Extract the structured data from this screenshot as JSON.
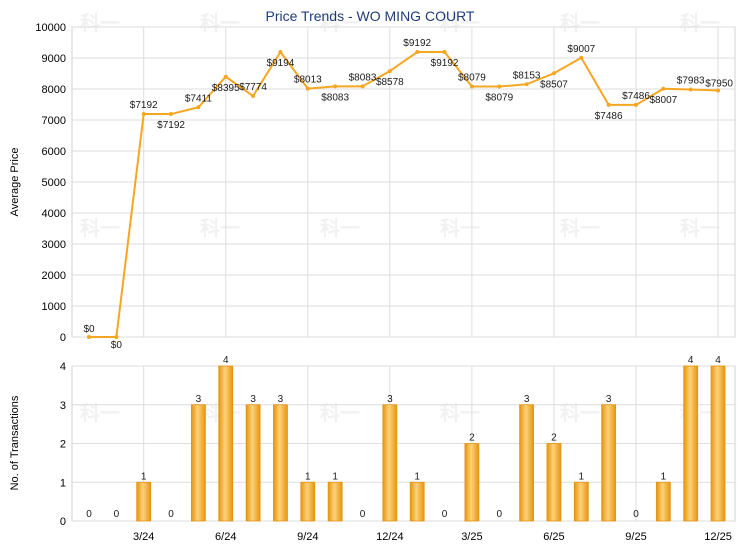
{
  "chart_data": [
    {
      "type": "line",
      "title": "Price Trends - WO MING COURT",
      "ylabel": "Average Price",
      "ylim": [
        0,
        10000
      ],
      "yticks": [
        0,
        1000,
        2000,
        3000,
        4000,
        5000,
        6000,
        7000,
        8000,
        9000,
        10000
      ],
      "xticks": [
        "3/24",
        "6/24",
        "9/24",
        "12/24",
        "3/25",
        "6/25",
        "9/25",
        "12/25"
      ],
      "xtick_index": [
        2,
        5,
        8,
        11,
        14,
        17,
        20,
        23
      ],
      "values": [
        0,
        0,
        7192,
        7192,
        7411,
        8395,
        7774,
        9194,
        8013,
        8083,
        8083,
        8578,
        9192,
        9192,
        8079,
        8079,
        8153,
        8507,
        9007,
        7486,
        7486,
        8007,
        7983,
        7950
      ],
      "labels": [
        "$0",
        "$0",
        "$7192",
        "$7192",
        "$7411",
        "$8395",
        "$7774",
        "$9194",
        "$8013",
        "$8083",
        "$8083",
        "$8578",
        "$9192",
        "$9192",
        "$8079",
        "$8079",
        "$8153",
        "$8507",
        "$9007",
        "$7486",
        "$7486",
        "$8007",
        "$7983",
        "$7950"
      ],
      "color": "#f5a623",
      "grid": true
    },
    {
      "type": "bar",
      "ylabel": "No. of Transactions",
      "ylim": [
        0,
        4
      ],
      "yticks": [
        0,
        1,
        2,
        3,
        4
      ],
      "xticks": [
        "3/24",
        "6/24",
        "9/24",
        "12/24",
        "3/25",
        "6/25",
        "9/25",
        "12/25"
      ],
      "values": [
        0,
        0,
        1,
        0,
        3,
        4,
        3,
        3,
        1,
        1,
        0,
        3,
        1,
        0,
        2,
        0,
        3,
        2,
        1,
        3,
        0,
        1,
        4,
        4
      ],
      "color": "#f5a623",
      "grid": true
    }
  ],
  "watermark": "科一"
}
